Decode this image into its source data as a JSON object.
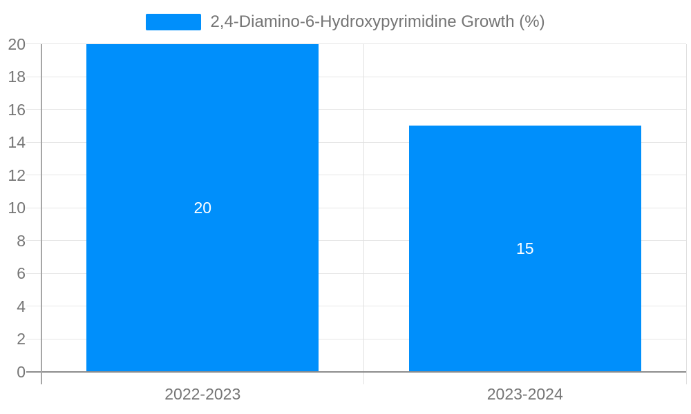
{
  "chart_data": {
    "type": "bar",
    "title": "",
    "legend": {
      "label": "2,4-Diamino-6-Hydroxypyrimidine Growth (%)",
      "position": "top"
    },
    "categories": [
      "2022-2023",
      "2023-2024"
    ],
    "series": [
      {
        "name": "2,4-Diamino-6-Hydroxypyrimidine Growth (%)",
        "values": [
          20,
          15
        ]
      }
    ],
    "bar_value_labels": [
      "20",
      "15"
    ],
    "xlabel": "",
    "ylabel": "",
    "ylim": [
      0,
      20
    ],
    "yticks": [
      0,
      2,
      4,
      6,
      8,
      10,
      12,
      14,
      16,
      18,
      20
    ],
    "grid": true,
    "colors": {
      "bar": "#008FFB",
      "gridline": "#e6e6e6",
      "baseline": "#8c8c8c",
      "axis_line": "#a6a6a6",
      "category_gridline": "#e0e0e0",
      "axis_label_text": "#757575",
      "legend_text": "#757575",
      "bar_value_text": "#ffffff",
      "background": "#ffffff"
    }
  }
}
